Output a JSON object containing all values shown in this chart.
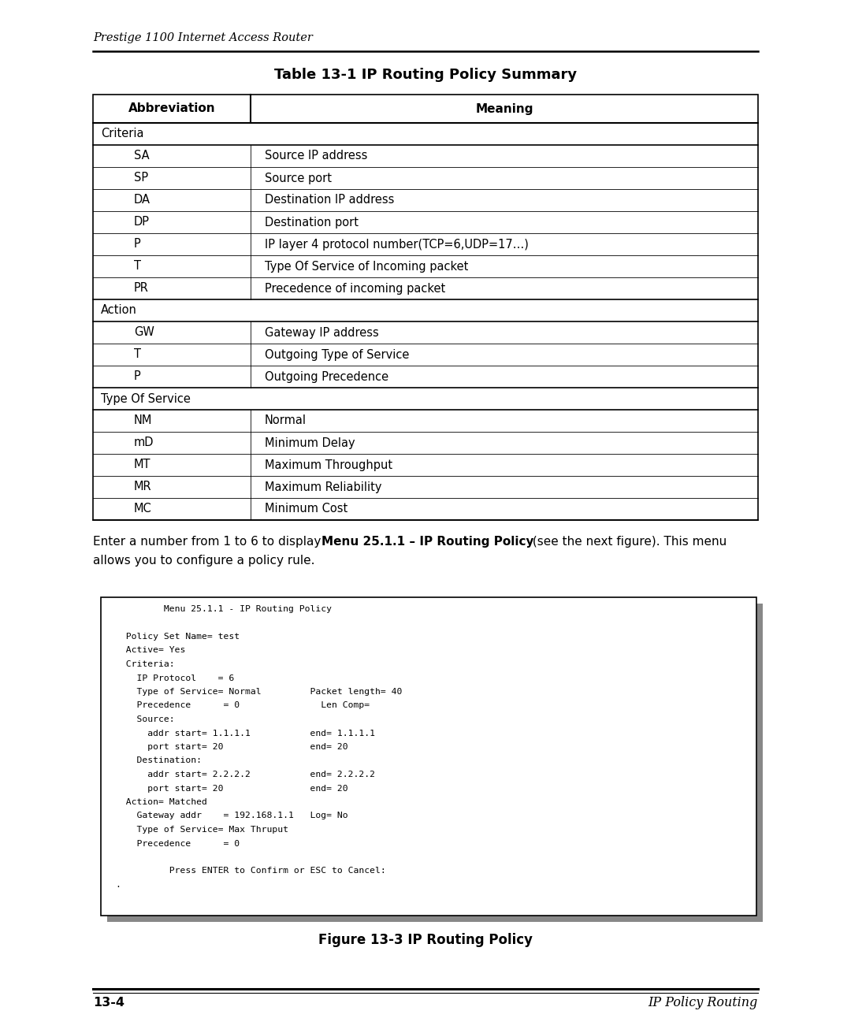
{
  "bg_color": "#ffffff",
  "page_width": 10.8,
  "page_height": 13.11,
  "header_text": "Prestige 1100 Internet Access Router",
  "table_title": "Table 13-1 IP Routing Policy Summary",
  "col_headers": [
    "Abbreviation",
    "Meaning"
  ],
  "table_rows": [
    {
      "abbr": "Criteria",
      "meaning": "",
      "is_section": true
    },
    {
      "abbr": "SA",
      "meaning": "Source IP address",
      "is_section": false
    },
    {
      "abbr": "SP",
      "meaning": "Source port",
      "is_section": false
    },
    {
      "abbr": "DA",
      "meaning": "Destination IP address",
      "is_section": false
    },
    {
      "abbr": "DP",
      "meaning": "Destination port",
      "is_section": false
    },
    {
      "abbr": "P",
      "meaning": "IP layer 4 protocol number(TCP=6,UDP=17…)",
      "is_section": false
    },
    {
      "abbr": "T",
      "meaning": "Type Of Service of Incoming packet",
      "is_section": false
    },
    {
      "abbr": "PR",
      "meaning": "Precedence of incoming packet",
      "is_section": false
    },
    {
      "abbr": "Action",
      "meaning": "",
      "is_section": true
    },
    {
      "abbr": "GW",
      "meaning": "Gateway IP address",
      "is_section": false
    },
    {
      "abbr": "T",
      "meaning": "Outgoing Type of Service",
      "is_section": false
    },
    {
      "abbr": "P",
      "meaning": "Outgoing Precedence",
      "is_section": false
    },
    {
      "abbr": "Type Of Service",
      "meaning": "",
      "is_section": true
    },
    {
      "abbr": "NM",
      "meaning": "Normal",
      "is_section": false
    },
    {
      "abbr": "mD",
      "meaning": "Minimum Delay",
      "is_section": false
    },
    {
      "abbr": "MT",
      "meaning": "Maximum Throughput",
      "is_section": false
    },
    {
      "abbr": "MR",
      "meaning": "Maximum Reliability",
      "is_section": false
    },
    {
      "abbr": "MC",
      "meaning": "Minimum Cost",
      "is_section": false
    }
  ],
  "para_normal1": "Enter a number from 1 to 6 to display ",
  "para_bold": "Menu 25.1.1 – IP Routing Policy",
  "para_normal2": " (see the next figure). This menu",
  "para_line2": "allows you to configure a policy rule.",
  "terminal_lines": [
    "         Menu 25.1.1 - IP Routing Policy",
    "",
    "  Policy Set Name= test",
    "  Active= Yes",
    "  Criteria:",
    "    IP Protocol    = 6",
    "    Type of Service= Normal         Packet length= 40",
    "    Precedence      = 0               Len Comp=",
    "    Source:",
    "      addr start= 1.1.1.1           end= 1.1.1.1",
    "      port start= 20                end= 20",
    "    Destination:",
    "      addr start= 2.2.2.2           end= 2.2.2.2",
    "      port start= 20                end= 20",
    "  Action= Matched",
    "    Gateway addr    = 192.168.1.1   Log= No",
    "    Type of Service= Max Thruput",
    "    Precedence      = 0",
    "",
    "          Press ENTER to Confirm or ESC to Cancel:",
    "."
  ],
  "figure_caption": "Figure 13-3 IP Routing Policy",
  "footer_left": "13-4",
  "footer_right": "IP Policy Routing"
}
